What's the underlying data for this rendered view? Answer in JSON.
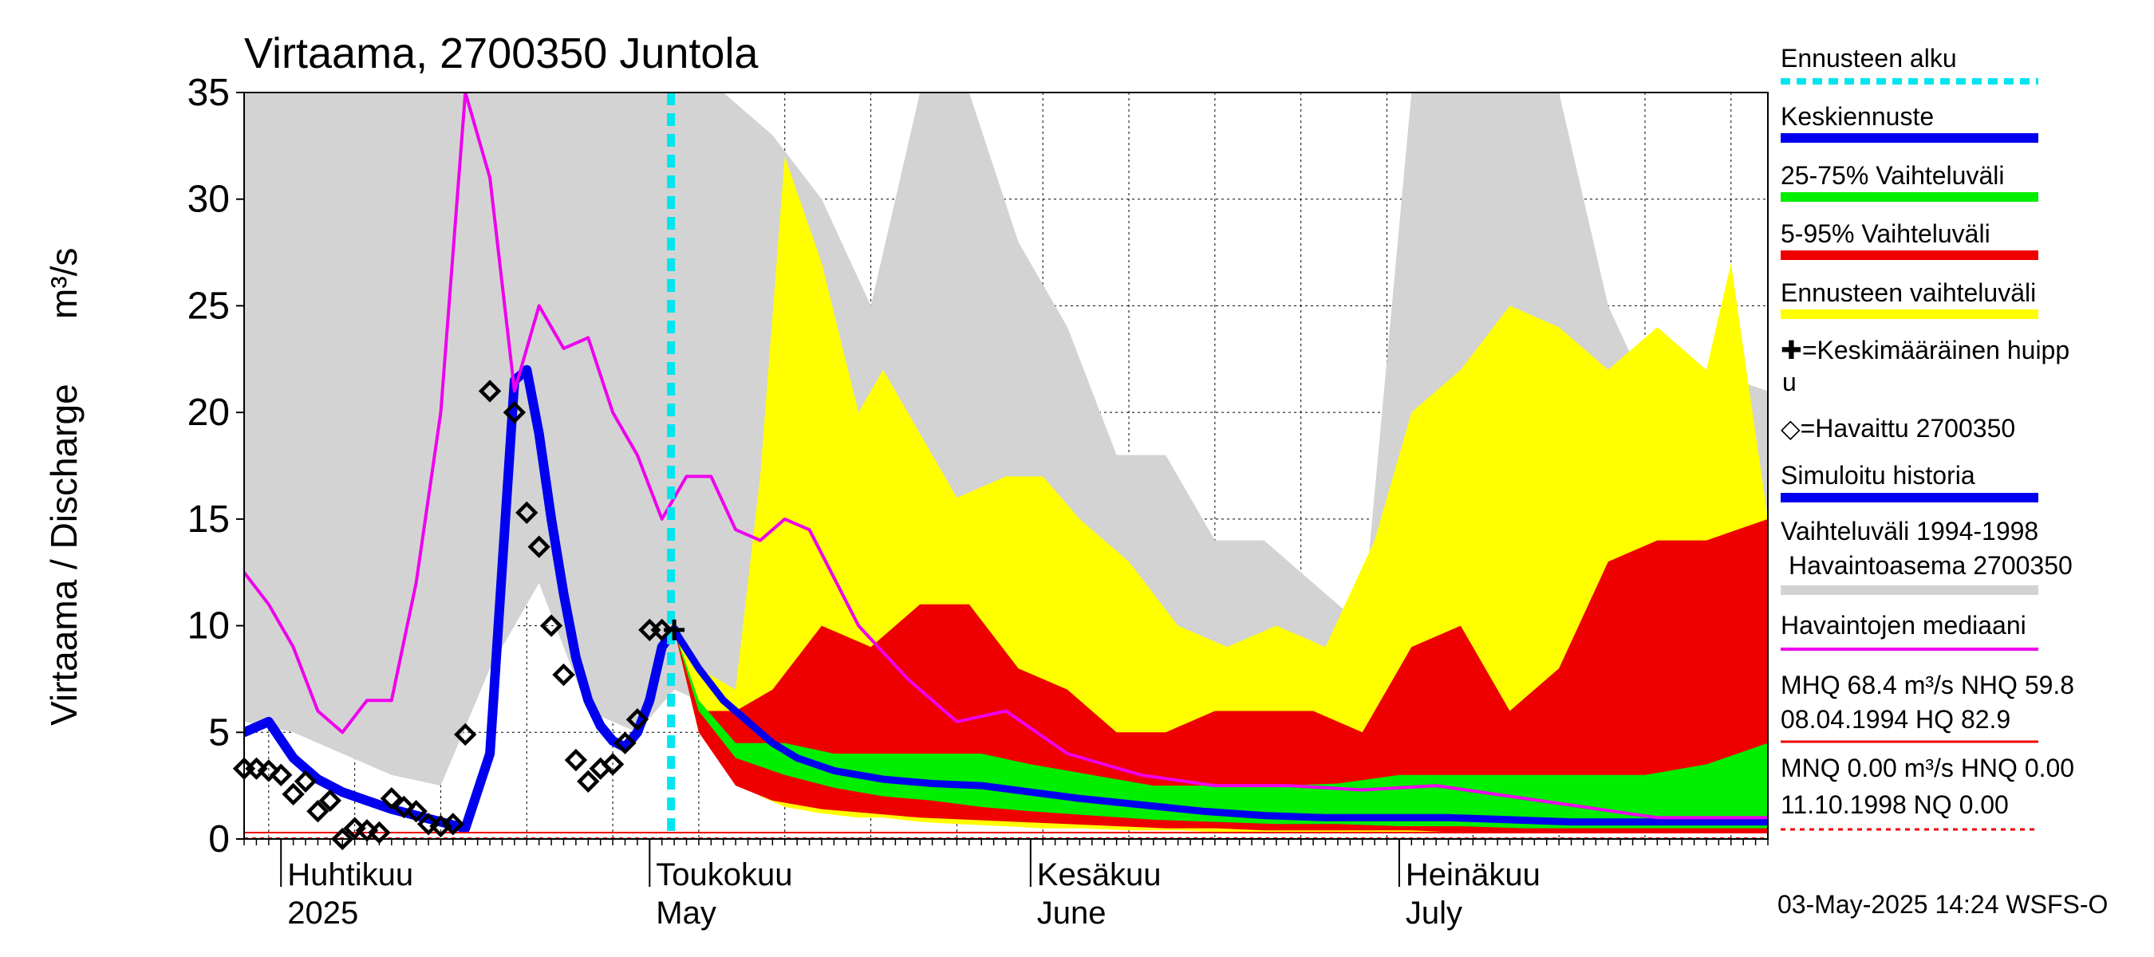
{
  "chart_data": {
    "type": "area",
    "title": "Virtaama, 2700350 Juntola",
    "ylabel": "Virtaama / Discharge",
    "yunit": "m³/s",
    "ylim": [
      0,
      35
    ],
    "yticks": [
      "0",
      "5",
      "10",
      "15",
      "20",
      "25",
      "30",
      "35"
    ],
    "xlim": [
      "2025-03-29",
      "2025-07-31"
    ],
    "forecast_start": "2025-05-03",
    "month_labels": [
      {
        "date": "2025-04-01",
        "line1": "Huhtikuu",
        "line2": "2025"
      },
      {
        "date": "2025-05-01",
        "line1": "Toukokuu",
        "line2": "May"
      },
      {
        "date": "2025-06-01",
        "line1": "Kesäkuu",
        "line2": "June"
      },
      {
        "date": "2025-07-01",
        "line1": "Heinäkuu",
        "line2": "July"
      }
    ],
    "grid": true,
    "legend_position": "right",
    "colors": {
      "forecast_start": "#00e5ee",
      "mean_forecast": "#0000ee",
      "band_25_75": "#00ee00",
      "band_5_95": "#ee0000",
      "forecast_range": "#ffff00",
      "mean_peak": "#000000",
      "observed": "#000000",
      "simulated": "#0000ee",
      "history_range": "#d3d3d3",
      "obs_median": "#ee00ee",
      "mhq": "#ee0000",
      "mnq": "#ee0000"
    },
    "legend": [
      {
        "key": "forecast_start",
        "label": "Ennusteen alku"
      },
      {
        "key": "mean_forecast",
        "label": "Keskiennuste"
      },
      {
        "key": "band_25_75",
        "label": "25-75% Vaihteluväli"
      },
      {
        "key": "band_5_95",
        "label": "5-95% Vaihteluväli"
      },
      {
        "key": "forecast_range",
        "label": "Ennusteen vaihteluväli"
      },
      {
        "key": "mean_peak",
        "label": "✚=Keskimääräinen huippu"
      },
      {
        "key": "observed",
        "label": "◇=Havaittu 2700350"
      },
      {
        "key": "simulated",
        "label": "Simuloitu historia"
      },
      {
        "key": "history_range",
        "label": "Vaihteluväli 1994-1998 Havaintoasema 2700350"
      },
      {
        "key": "obs_median",
        "label": "Havaintojen mediaani"
      },
      {
        "key": "mhq",
        "label": "MHQ 68.4 m³/s NHQ 59.8 08.04.1994 HQ 82.9"
      },
      {
        "key": "mnq",
        "label": "MNQ 0.00 m³/s HNQ 0.00 11.10.1998 NQ 0.00"
      }
    ],
    "series": [
      {
        "key": "history_range",
        "kind": "band",
        "x": [
          "2025-03-29",
          "2025-04-02",
          "2025-04-06",
          "2025-04-10",
          "2025-04-14",
          "2025-04-18",
          "2025-04-22",
          "2025-04-26",
          "2025-04-30",
          "2025-05-03",
          "2025-05-07",
          "2025-05-11",
          "2025-05-15",
          "2025-05-19",
          "2025-05-23",
          "2025-05-27",
          "2025-05-31",
          "2025-06-04",
          "2025-06-08",
          "2025-06-12",
          "2025-06-16",
          "2025-06-20",
          "2025-06-24",
          "2025-06-28",
          "2025-07-02",
          "2025-07-06",
          "2025-07-10",
          "2025-07-14",
          "2025-07-18",
          "2025-07-22",
          "2025-07-26",
          "2025-07-31"
        ],
        "low": [
          5.5,
          5,
          4,
          3,
          2.5,
          8,
          12,
          6,
          5,
          7,
          6,
          5,
          3,
          2,
          1.5,
          1.5,
          1,
          1,
          1,
          0.8,
          0.8,
          0.7,
          0.7,
          0.7,
          0.6,
          0.6,
          0.6,
          0.5,
          0.5,
          0.5,
          0.5,
          0.5
        ],
        "high": [
          35,
          35,
          35,
          35,
          35,
          35,
          35,
          35,
          35,
          35,
          35,
          33,
          30,
          25,
          35,
          35,
          28,
          24,
          18,
          18,
          14,
          14,
          12,
          10,
          35,
          35,
          35,
          35,
          25,
          20,
          22,
          21
        ]
      },
      {
        "key": "forecast_range",
        "kind": "band",
        "x": [
          "2025-05-03",
          "2025-05-05",
          "2025-05-08",
          "2025-05-10",
          "2025-05-12",
          "2025-05-15",
          "2025-05-18",
          "2025-05-20",
          "2025-05-23",
          "2025-05-26",
          "2025-05-30",
          "2025-06-02",
          "2025-06-05",
          "2025-06-09",
          "2025-06-13",
          "2025-06-17",
          "2025-06-21",
          "2025-06-25",
          "2025-06-29",
          "2025-07-02",
          "2025-07-06",
          "2025-07-10",
          "2025-07-14",
          "2025-07-18",
          "2025-07-22",
          "2025-07-26",
          "2025-07-28",
          "2025-07-31"
        ],
        "low": [
          9.8,
          5,
          3,
          2,
          1.5,
          1.2,
          1,
          1,
          0.8,
          0.7,
          0.6,
          0.5,
          0.5,
          0.4,
          0.4,
          0.3,
          0.3,
          0.3,
          0.3,
          0.3,
          0.3,
          0.3,
          0.3,
          0.3,
          0.3,
          0.3,
          0.3,
          0.3
        ],
        "high": [
          9.8,
          8,
          7,
          17,
          32,
          27,
          20,
          22,
          19,
          16,
          17,
          17,
          15,
          13,
          10,
          9,
          10,
          9,
          14,
          20,
          22,
          25,
          24,
          22,
          24,
          22,
          27,
          15
        ]
      },
      {
        "key": "band_5_95",
        "kind": "band",
        "x": [
          "2025-05-03",
          "2025-05-05",
          "2025-05-08",
          "2025-05-11",
          "2025-05-15",
          "2025-05-19",
          "2025-05-23",
          "2025-05-27",
          "2025-05-31",
          "2025-06-04",
          "2025-06-08",
          "2025-06-12",
          "2025-06-16",
          "2025-06-20",
          "2025-06-24",
          "2025-06-28",
          "2025-07-02",
          "2025-07-06",
          "2025-07-10",
          "2025-07-14",
          "2025-07-18",
          "2025-07-22",
          "2025-07-26",
          "2025-07-31"
        ],
        "low": [
          9.8,
          5,
          2.5,
          1.8,
          1.4,
          1.2,
          1,
          0.9,
          0.8,
          0.7,
          0.6,
          0.5,
          0.5,
          0.4,
          0.4,
          0.4,
          0.4,
          0.3,
          0.3,
          0.3,
          0.3,
          0.3,
          0.3,
          0.3
        ],
        "high": [
          9.8,
          6,
          6,
          7,
          10,
          9,
          11,
          11,
          8,
          7,
          5,
          5,
          6,
          6,
          6,
          5,
          9,
          10,
          6,
          8,
          13,
          14,
          14,
          15
        ]
      },
      {
        "key": "band_25_75",
        "kind": "band",
        "x": [
          "2025-05-03",
          "2025-05-05",
          "2025-05-08",
          "2025-05-12",
          "2025-05-16",
          "2025-05-20",
          "2025-05-24",
          "2025-05-28",
          "2025-06-01",
          "2025-06-06",
          "2025-06-11",
          "2025-06-16",
          "2025-06-21",
          "2025-06-26",
          "2025-07-01",
          "2025-07-06",
          "2025-07-11",
          "2025-07-16",
          "2025-07-21",
          "2025-07-26",
          "2025-07-31"
        ],
        "low": [
          9.8,
          6,
          3.8,
          3,
          2.4,
          2,
          1.8,
          1.5,
          1.3,
          1.1,
          0.9,
          0.8,
          0.7,
          0.7,
          0.6,
          0.6,
          0.5,
          0.5,
          0.5,
          0.5,
          0.5
        ],
        "high": [
          9.8,
          6.5,
          4.5,
          4.5,
          4,
          4,
          4,
          4,
          3.5,
          3,
          2.5,
          2.5,
          2.5,
          2.6,
          3,
          3,
          3,
          3,
          3,
          3.5,
          4.5
        ]
      },
      {
        "key": "mean_forecast",
        "kind": "line",
        "x": [
          "2025-05-03",
          "2025-05-05",
          "2025-05-07",
          "2025-05-09",
          "2025-05-11",
          "2025-05-13",
          "2025-05-16",
          "2025-05-20",
          "2025-05-24",
          "2025-05-28",
          "2025-06-01",
          "2025-06-05",
          "2025-06-10",
          "2025-06-15",
          "2025-06-20",
          "2025-06-25",
          "2025-06-30",
          "2025-07-05",
          "2025-07-10",
          "2025-07-15",
          "2025-07-20",
          "2025-07-25",
          "2025-07-31"
        ],
        "y": [
          9.8,
          8,
          6.5,
          5.5,
          4.5,
          3.8,
          3.2,
          2.8,
          2.6,
          2.5,
          2.2,
          1.9,
          1.6,
          1.3,
          1.1,
          1.0,
          1.0,
          1.0,
          0.9,
          0.8,
          0.8,
          0.8,
          0.8
        ]
      },
      {
        "key": "simulated",
        "kind": "line",
        "x": [
          "2025-03-29",
          "2025-03-31",
          "2025-04-02",
          "2025-04-04",
          "2025-04-06",
          "2025-04-08",
          "2025-04-10",
          "2025-04-12",
          "2025-04-14",
          "2025-04-16",
          "2025-04-18",
          "2025-04-20",
          "2025-04-21",
          "2025-04-22",
          "2025-04-23",
          "2025-04-24",
          "2025-04-25",
          "2025-04-26",
          "2025-04-27",
          "2025-04-28",
          "2025-04-29",
          "2025-04-30",
          "2025-05-01",
          "2025-05-02",
          "2025-05-03"
        ],
        "y": [
          5.0,
          5.5,
          3.8,
          2.8,
          2.2,
          1.8,
          1.4,
          1.1,
          0.8,
          0.5,
          4,
          21.5,
          22,
          19,
          15,
          11.5,
          8.5,
          6.5,
          5.3,
          4.6,
          4.3,
          5,
          6.5,
          9,
          9.8
        ]
      },
      {
        "key": "obs_median",
        "kind": "line",
        "x": [
          "2025-03-29",
          "2025-03-31",
          "2025-04-02",
          "2025-04-04",
          "2025-04-06",
          "2025-04-08",
          "2025-04-10",
          "2025-04-12",
          "2025-04-14",
          "2025-04-16",
          "2025-04-18",
          "2025-04-20",
          "2025-04-22",
          "2025-04-24",
          "2025-04-26",
          "2025-04-28",
          "2025-04-30",
          "2025-05-02",
          "2025-05-04",
          "2025-05-06",
          "2025-05-08",
          "2025-05-10",
          "2025-05-12",
          "2025-05-14",
          "2025-05-18",
          "2025-05-22",
          "2025-05-26",
          "2025-05-30",
          "2025-06-04",
          "2025-06-10",
          "2025-06-16",
          "2025-06-22",
          "2025-06-28",
          "2025-07-04",
          "2025-07-10",
          "2025-07-16",
          "2025-07-22",
          "2025-07-28",
          "2025-07-31"
        ],
        "y": [
          12.5,
          11,
          9,
          6,
          5,
          6.5,
          6.5,
          12,
          20,
          35,
          31,
          21,
          25,
          23,
          23.5,
          20,
          18,
          15,
          17,
          17,
          14.5,
          14,
          15,
          14.5,
          10,
          7.5,
          5.5,
          6,
          4,
          3,
          2.5,
          2.5,
          2.3,
          2.5,
          2,
          1.5,
          1,
          1,
          1
        ]
      }
    ],
    "observed": {
      "x": [
        "2025-03-29",
        "2025-03-30",
        "2025-03-31",
        "2025-04-01",
        "2025-04-02",
        "2025-04-03",
        "2025-04-04",
        "2025-04-05",
        "2025-04-06",
        "2025-04-07",
        "2025-04-08",
        "2025-04-09",
        "2025-04-10",
        "2025-04-11",
        "2025-04-12",
        "2025-04-13",
        "2025-04-14",
        "2025-04-15",
        "2025-04-16",
        "2025-04-18",
        "2025-04-20",
        "2025-04-21",
        "2025-04-22",
        "2025-04-23",
        "2025-04-24",
        "2025-04-25",
        "2025-04-26",
        "2025-04-27",
        "2025-04-28",
        "2025-04-29",
        "2025-04-30",
        "2025-05-01",
        "2025-05-02"
      ],
      "y": [
        3.3,
        3.3,
        3.2,
        3.0,
        2.1,
        2.7,
        1.3,
        1.8,
        0.0,
        0.5,
        0.4,
        0.3,
        1.9,
        1.5,
        1.3,
        0.7,
        0.6,
        0.7,
        4.9,
        21,
        20,
        15.3,
        13.7,
        10.0,
        7.7,
        3.7,
        2.7,
        3.3,
        3.5,
        4.5,
        5.6,
        9.8,
        9.8
      ]
    },
    "mean_peak": {
      "x": "2025-05-03",
      "y": 9.8
    },
    "mhq_line": {
      "y": 0.3
    },
    "mnq_line": {
      "y": 0.0
    }
  },
  "footer": "03-May-2025 14:24 WSFS-O"
}
